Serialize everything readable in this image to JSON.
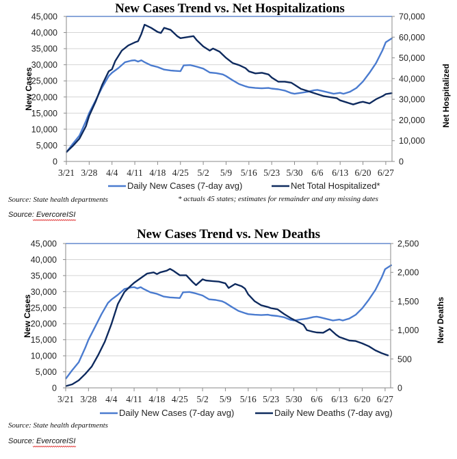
{
  "colors": {
    "cases": "#4a7bcf",
    "secondary": "#0e2a5e",
    "grid": "#d4d4d4",
    "frame": "#4472c4"
  },
  "footer": {
    "source_primary": "Source: State health departments",
    "source_secondary": "Source: EvercoreISI"
  },
  "chart_data": [
    {
      "type": "line",
      "title": "New Cases Trend vs. Net Hospitalizations",
      "xlabel": "",
      "ylabel": "New Cases",
      "y2label": "Net Hospitalized",
      "ylim": [
        0,
        45000
      ],
      "y2lim": [
        0,
        70000
      ],
      "yticks": [
        "0",
        "5,000",
        "10,000",
        "15,000",
        "20,000",
        "25,000",
        "30,000",
        "35,000",
        "40,000",
        "45,000"
      ],
      "y2ticks": [
        "0",
        "10,000",
        "20,000",
        "30,000",
        "40,000",
        "50,000",
        "60,000",
        "70,000"
      ],
      "x_unit": "days since 3/21",
      "xlim": [
        0,
        100
      ],
      "xticks": [
        "3/21",
        "3/28",
        "4/4",
        "4/11",
        "4/18",
        "4/25",
        "5/2",
        "5/9",
        "5/16",
        "5/23",
        "5/30",
        "6/6",
        "6/13",
        "6/20",
        "6/27"
      ],
      "grid": true,
      "legend_position": "bottom",
      "footnote": "* actuals 45 states; estimates for remainder and any missing dates",
      "series": [
        {
          "name": "Daily New Cases (7-day avg)",
          "axis": "left",
          "color_key": "cases",
          "x": [
            0,
            2,
            4,
            6,
            7,
            9,
            11,
            13,
            14,
            16,
            18,
            20,
            21,
            22,
            23,
            24,
            26,
            28,
            30,
            32,
            35,
            36,
            38,
            40,
            42,
            44,
            46,
            48,
            49,
            51,
            53,
            55,
            56,
            58,
            60,
            62,
            63,
            65,
            67,
            69,
            70,
            72,
            74,
            76,
            77,
            78,
            80,
            82,
            84,
            85,
            87,
            89,
            91,
            93,
            95,
            97,
            98,
            100
          ],
          "values": [
            2800,
            5500,
            8000,
            12500,
            15000,
            19000,
            23000,
            26500,
            27500,
            29000,
            30800,
            31300,
            31400,
            31000,
            31400,
            30800,
            29800,
            29300,
            28500,
            28200,
            28000,
            29800,
            29900,
            29400,
            28800,
            27600,
            27400,
            27000,
            26500,
            25200,
            24000,
            23300,
            23000,
            22800,
            22700,
            22800,
            22600,
            22400,
            22000,
            21200,
            21000,
            21300,
            21600,
            22100,
            22200,
            22000,
            21500,
            21000,
            21300,
            21000,
            21600,
            22800,
            24800,
            27500,
            30500,
            34500,
            37000,
            38300
          ]
        },
        {
          "name": "Net Total Hospitalized*",
          "axis": "right",
          "color_key": "secondary",
          "x": [
            0,
            2,
            4,
            6,
            7,
            9,
            11,
            13,
            14,
            15,
            17,
            19,
            21,
            22,
            23,
            24,
            26,
            28,
            29,
            30,
            32,
            34,
            35,
            37,
            39,
            40,
            42,
            44,
            45,
            47,
            49,
            51,
            53,
            55,
            56,
            58,
            60,
            62,
            63,
            65,
            67,
            69,
            70,
            72,
            74,
            76,
            77,
            79,
            81,
            83,
            84,
            86,
            88,
            90,
            91,
            93,
            95,
            97,
            98,
            100
          ],
          "values": [
            4500,
            7500,
            11000,
            17000,
            22000,
            29000,
            37000,
            43500,
            44500,
            48500,
            53500,
            56000,
            57500,
            58000,
            61500,
            66000,
            64500,
            62500,
            62000,
            64500,
            63500,
            60500,
            59500,
            60000,
            60500,
            58500,
            55500,
            53500,
            54500,
            53000,
            50000,
            47500,
            46500,
            45000,
            43500,
            42500,
            42800,
            42000,
            40500,
            38500,
            38500,
            38000,
            37000,
            35000,
            34000,
            33000,
            32500,
            31500,
            31000,
            30500,
            29500,
            28500,
            27500,
            28500,
            28800,
            28000,
            30000,
            31500,
            32500,
            33000
          ]
        }
      ]
    },
    {
      "type": "line",
      "title": "New Cases Trend vs. New Deaths",
      "xlabel": "",
      "ylabel": "New Cases",
      "y2label": "New Deaths",
      "ylim": [
        0,
        45000
      ],
      "y2lim": [
        0,
        2500
      ],
      "yticks": [
        "0",
        "5,000",
        "10,000",
        "15,000",
        "20,000",
        "25,000",
        "30,000",
        "35,000",
        "40,000",
        "45,000"
      ],
      "y2ticks": [
        "0",
        "500",
        "1,000",
        "1,500",
        "2,000",
        "2,500"
      ],
      "x_unit": "days since 3/21",
      "xlim": [
        0,
        100
      ],
      "xticks": [
        "3/21",
        "3/28",
        "4/4",
        "4/11",
        "4/18",
        "4/25",
        "5/2",
        "5/9",
        "5/16",
        "5/23",
        "5/30",
        "6/6",
        "6/13",
        "6/20",
        "6/27"
      ],
      "grid": true,
      "legend_position": "bottom",
      "series": [
        {
          "name": "Daily New Cases (7-day avg)",
          "axis": "left",
          "color_key": "cases",
          "x": [
            0,
            2,
            4,
            6,
            7,
            9,
            11,
            13,
            14,
            16,
            18,
            20,
            21,
            22,
            23,
            24,
            26,
            28,
            30,
            32,
            35,
            36,
            38,
            40,
            42,
            44,
            46,
            48,
            49,
            51,
            53,
            55,
            56,
            58,
            60,
            62,
            63,
            65,
            67,
            69,
            70,
            72,
            74,
            76,
            77,
            78,
            80,
            82,
            84,
            85,
            87,
            89,
            91,
            93,
            95,
            97,
            98,
            100
          ],
          "values": [
            2800,
            5500,
            8000,
            12500,
            15000,
            19000,
            23000,
            26500,
            27500,
            29000,
            30800,
            31300,
            31400,
            31000,
            31400,
            30800,
            29800,
            29300,
            28500,
            28200,
            28000,
            29800,
            29900,
            29400,
            28800,
            27600,
            27400,
            27000,
            26500,
            25200,
            24000,
            23300,
            23000,
            22800,
            22700,
            22800,
            22600,
            22400,
            22000,
            21200,
            21000,
            21300,
            21600,
            22100,
            22200,
            22000,
            21500,
            21000,
            21300,
            21000,
            21600,
            22800,
            24800,
            27500,
            30500,
            34500,
            37000,
            38300
          ]
        },
        {
          "name": "Daily New Deaths (7-day avg)",
          "axis": "right",
          "color_key": "secondary",
          "x": [
            0,
            2,
            4,
            6,
            8,
            10,
            12,
            14,
            16,
            18,
            20,
            21,
            23,
            25,
            27,
            28,
            29,
            31,
            32,
            33,
            35,
            37,
            39,
            40,
            42,
            43,
            45,
            47,
            49,
            50,
            52,
            54,
            55,
            56,
            58,
            60,
            62,
            63,
            65,
            66,
            67,
            69,
            71,
            73,
            74,
            76,
            77,
            79,
            81,
            83,
            84,
            85,
            87,
            89,
            91,
            93,
            95,
            97,
            99
          ],
          "values": [
            30,
            60,
            130,
            240,
            370,
            570,
            800,
            1100,
            1450,
            1660,
            1770,
            1820,
            1900,
            1980,
            2000,
            1970,
            2000,
            2030,
            2060,
            2030,
            1950,
            1950,
            1830,
            1780,
            1880,
            1860,
            1850,
            1840,
            1810,
            1730,
            1800,
            1760,
            1720,
            1620,
            1500,
            1430,
            1400,
            1380,
            1360,
            1320,
            1280,
            1210,
            1150,
            1090,
            1000,
            970,
            960,
            955,
            1020,
            920,
            880,
            860,
            820,
            810,
            770,
            720,
            650,
            600,
            560
          ]
        }
      ]
    }
  ]
}
